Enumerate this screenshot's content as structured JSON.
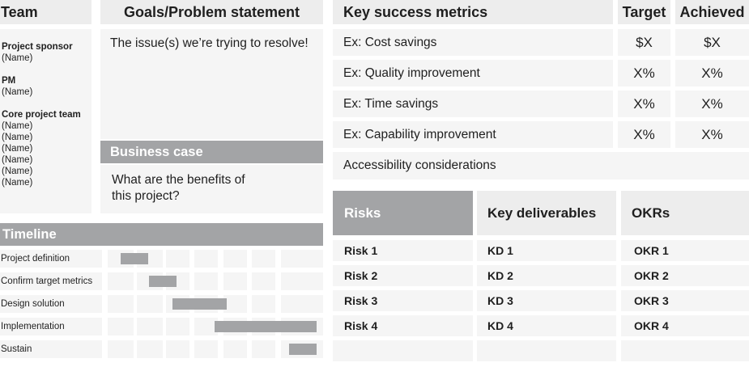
{
  "team": {
    "title": "Team",
    "sponsor_label": "Project sponsor",
    "sponsor_name": "(Name)",
    "pm_label": "PM",
    "pm_name": "(Name)",
    "core_label": "Core project team",
    "core_names": [
      "(Name)",
      "(Name)",
      "(Name)",
      "(Name)",
      "(Name)",
      "(Name)"
    ]
  },
  "goals": {
    "title": "Goals/Problem statement",
    "text": "The issue(s) we’re trying to resolve!"
  },
  "business_case": {
    "title": "Business case",
    "text_line1": "What are the benefits of",
    "text_line2": "this project?"
  },
  "metrics": {
    "title": "Key success metrics",
    "target_label": "Target",
    "achieved_label": "Achieved",
    "rows": [
      {
        "label": "Ex: Cost savings",
        "target": "$X",
        "achieved": "$X"
      },
      {
        "label": "Ex: Quality improvement",
        "target": "X%",
        "achieved": "X%"
      },
      {
        "label": "Ex: Time savings",
        "target": "X%",
        "achieved": "X%"
      },
      {
        "label": "Ex: Capability improvement",
        "target": "X%",
        "achieved": "X%"
      }
    ],
    "accessibility": "Accessibility considerations"
  },
  "timeline": {
    "title": "Timeline",
    "phases": [
      {
        "label": "Project definition"
      },
      {
        "label": "Confirm target metrics"
      },
      {
        "label": "Design solution"
      },
      {
        "label": "Implementation"
      },
      {
        "label": "Sustain"
      }
    ]
  },
  "lower_table": {
    "risks_title": "Risks",
    "deliverables_title": "Key deliverables",
    "okrs_title": "OKRs",
    "rows": [
      {
        "risk": "Risk 1",
        "kd": "KD 1",
        "okr": "OKR 1"
      },
      {
        "risk": "Risk 2",
        "kd": "KD 2",
        "okr": "OKR 2"
      },
      {
        "risk": "Risk 3",
        "kd": "KD 3",
        "okr": "OKR 3"
      },
      {
        "risk": "Risk 4",
        "kd": "KD 4",
        "okr": "OKR 4"
      }
    ]
  },
  "colors": {
    "header_bg": "#ededed",
    "cell_bg": "#f5f5f5",
    "accent_gray": "#a3a4a6"
  }
}
